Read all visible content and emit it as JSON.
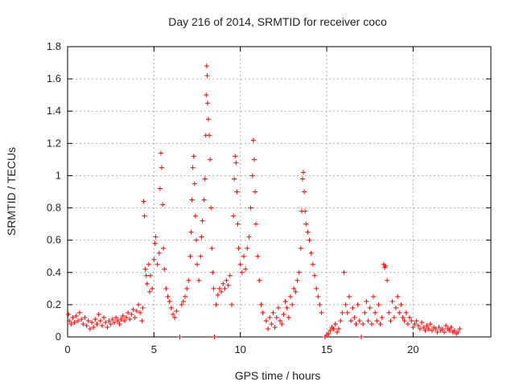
{
  "chart_data": {
    "type": "scatter",
    "title": "Day 216 of 2014, SRMTID for receiver coco",
    "xlabel": "GPS time / hours",
    "ylabel": "SRMTID / TECUs",
    "xlim": [
      0,
      24.5
    ],
    "ylim": [
      0,
      1.8
    ],
    "xticks": [
      0,
      5,
      10,
      15,
      20
    ],
    "xtick_labels": [
      "0",
      "5",
      "10",
      "15",
      "20"
    ],
    "yticks": [
      0,
      0.2,
      0.4,
      0.6,
      0.8,
      1.0,
      1.2,
      1.4,
      1.6,
      1.8
    ],
    "ytick_labels": [
      "0",
      "0.2",
      "0.4",
      "0.6",
      "0.8",
      "1",
      "1.2",
      "1.4",
      "1.6",
      "1.8"
    ],
    "grid": true,
    "marker": "+",
    "series": [
      {
        "name": "SRMTID",
        "color": "#ff0000",
        "points": [
          [
            0.05,
            0.14
          ],
          [
            0.1,
            0.1
          ],
          [
            0.2,
            0.08
          ],
          [
            0.3,
            0.12
          ],
          [
            0.4,
            0.09
          ],
          [
            0.5,
            0.13
          ],
          [
            0.6,
            0.1
          ],
          [
            0.7,
            0.15
          ],
          [
            0.8,
            0.11
          ],
          [
            0.9,
            0.08
          ],
          [
            1.0,
            0.12
          ],
          [
            1.1,
            0.07
          ],
          [
            1.2,
            0.1
          ],
          [
            1.3,
            0.05
          ],
          [
            1.4,
            0.09
          ],
          [
            1.5,
            0.06
          ],
          [
            1.6,
            0.11
          ],
          [
            1.7,
            0.08
          ],
          [
            1.8,
            0.14
          ],
          [
            1.9,
            0.1
          ],
          [
            2.0,
            0.07
          ],
          [
            2.1,
            0.12
          ],
          [
            2.2,
            0.09
          ],
          [
            2.3,
            0.06
          ],
          [
            2.4,
            0.1
          ],
          [
            2.5,
            0.08
          ],
          [
            2.6,
            0.11
          ],
          [
            2.7,
            0.09
          ],
          [
            2.8,
            0.12
          ],
          [
            2.9,
            0.1
          ],
          [
            3.0,
            0.08
          ],
          [
            3.1,
            0.11
          ],
          [
            3.2,
            0.13
          ],
          [
            3.3,
            0.1
          ],
          [
            3.4,
            0.12
          ],
          [
            3.5,
            0.15
          ],
          [
            3.6,
            0.11
          ],
          [
            3.7,
            0.14
          ],
          [
            3.8,
            0.17
          ],
          [
            3.9,
            0.12
          ],
          [
            4.0,
            0.16
          ],
          [
            4.1,
            0.2
          ],
          [
            4.2,
            0.15
          ],
          [
            4.3,
            0.1
          ],
          [
            4.35,
            0.18
          ],
          [
            4.4,
            0.84
          ],
          [
            4.45,
            0.75
          ],
          [
            4.5,
            0.42
          ],
          [
            4.55,
            0.38
          ],
          [
            4.6,
            0.33
          ],
          [
            4.7,
            0.45
          ],
          [
            4.75,
            0.28
          ],
          [
            4.8,
            0.38
          ],
          [
            4.9,
            0.3
          ],
          [
            5.0,
            0.48
          ],
          [
            5.05,
            0.58
          ],
          [
            5.1,
            0.62
          ],
          [
            5.2,
            0.45
          ],
          [
            5.3,
            0.52
          ],
          [
            5.35,
            0.92
          ],
          [
            5.4,
            1.14
          ],
          [
            5.45,
            1.05
          ],
          [
            5.5,
            0.82
          ],
          [
            5.55,
            0.55
          ],
          [
            5.6,
            0.42
          ],
          [
            5.7,
            0.3
          ],
          [
            5.8,
            0.25
          ],
          [
            5.9,
            0.22
          ],
          [
            6.0,
            0.18
          ],
          [
            6.1,
            0.14
          ],
          [
            6.2,
            0.12
          ],
          [
            6.3,
            0.16
          ],
          [
            6.5,
            0.0
          ],
          [
            6.6,
            0.2
          ],
          [
            6.7,
            0.22
          ],
          [
            6.8,
            0.25
          ],
          [
            6.9,
            0.3
          ],
          [
            7.0,
            0.35
          ],
          [
            7.1,
            0.5
          ],
          [
            7.15,
            0.65
          ],
          [
            7.2,
            0.85
          ],
          [
            7.25,
            1.05
          ],
          [
            7.3,
            1.12
          ],
          [
            7.35,
            0.95
          ],
          [
            7.4,
            0.75
          ],
          [
            7.45,
            0.6
          ],
          [
            7.5,
            0.45
          ],
          [
            7.6,
            0.35
          ],
          [
            7.7,
            0.5
          ],
          [
            7.75,
            0.62
          ],
          [
            7.8,
            0.72
          ],
          [
            7.9,
            0.85
          ],
          [
            7.95,
            0.98
          ],
          [
            8.0,
            1.25
          ],
          [
            8.02,
            1.5
          ],
          [
            8.05,
            1.68
          ],
          [
            8.08,
            1.62
          ],
          [
            8.1,
            1.45
          ],
          [
            8.15,
            1.35
          ],
          [
            8.2,
            1.25
          ],
          [
            8.25,
            1.1
          ],
          [
            8.3,
            0.8
          ],
          [
            8.35,
            0.55
          ],
          [
            8.4,
            0.4
          ],
          [
            8.45,
            0.3
          ],
          [
            8.5,
            0.0
          ],
          [
            8.6,
            0.2
          ],
          [
            8.7,
            0.26
          ],
          [
            8.8,
            0.3
          ],
          [
            8.9,
            0.28
          ],
          [
            9.0,
            0.33
          ],
          [
            9.1,
            0.3
          ],
          [
            9.2,
            0.35
          ],
          [
            9.3,
            0.32
          ],
          [
            9.4,
            0.38
          ],
          [
            9.5,
            0.2
          ],
          [
            9.6,
            0.75
          ],
          [
            9.65,
            0.98
          ],
          [
            9.7,
            1.12
          ],
          [
            9.75,
            1.08
          ],
          [
            9.8,
            0.9
          ],
          [
            9.85,
            0.7
          ],
          [
            9.9,
            0.55
          ],
          [
            10.0,
            0.45
          ],
          [
            10.1,
            0.4
          ],
          [
            10.2,
            0.5
          ],
          [
            10.3,
            0.42
          ],
          [
            10.4,
            0.55
          ],
          [
            10.5,
            0.62
          ],
          [
            10.6,
            0.8
          ],
          [
            10.7,
            1.0
          ],
          [
            10.75,
            1.22
          ],
          [
            10.8,
            1.1
          ],
          [
            10.85,
            0.9
          ],
          [
            10.9,
            0.7
          ],
          [
            11.0,
            0.5
          ],
          [
            11.1,
            0.35
          ],
          [
            11.2,
            0.2
          ],
          [
            11.3,
            0.15
          ],
          [
            11.5,
            0.1
          ],
          [
            11.6,
            0.05
          ],
          [
            11.7,
            0.12
          ],
          [
            11.8,
            0.08
          ],
          [
            11.9,
            0.15
          ],
          [
            12.0,
            0.06
          ],
          [
            12.1,
            0.12
          ],
          [
            12.2,
            0.18
          ],
          [
            12.3,
            0.1
          ],
          [
            12.4,
            0.08
          ],
          [
            12.5,
            0.14
          ],
          [
            12.6,
            0.22
          ],
          [
            12.7,
            0.18
          ],
          [
            12.8,
            0.12
          ],
          [
            12.9,
            0.25
          ],
          [
            13.0,
            0.2
          ],
          [
            13.1,
            0.3
          ],
          [
            13.2,
            0.28
          ],
          [
            13.3,
            0.35
          ],
          [
            13.4,
            0.4
          ],
          [
            13.5,
            0.55
          ],
          [
            13.55,
            0.78
          ],
          [
            13.6,
            0.98
          ],
          [
            13.65,
            1.02
          ],
          [
            13.7,
            0.9
          ],
          [
            13.75,
            0.78
          ],
          [
            13.8,
            0.7
          ],
          [
            13.9,
            0.65
          ],
          [
            14.0,
            0.6
          ],
          [
            14.1,
            0.52
          ],
          [
            14.2,
            0.45
          ],
          [
            14.3,
            0.38
          ],
          [
            14.4,
            0.3
          ],
          [
            14.5,
            0.25
          ],
          [
            14.6,
            0.2
          ],
          [
            14.7,
            0.15
          ],
          [
            14.9,
            0.0
          ],
          [
            15.0,
            0.01
          ],
          [
            15.1,
            0.02
          ],
          [
            15.2,
            0.04
          ],
          [
            15.3,
            0.06
          ],
          [
            15.4,
            0.05
          ],
          [
            15.5,
            0.08
          ],
          [
            15.6,
            0.03
          ],
          [
            15.7,
            0.05
          ],
          [
            15.8,
            0.1
          ],
          [
            15.9,
            0.15
          ],
          [
            16.0,
            0.4
          ],
          [
            16.1,
            0.2
          ],
          [
            16.2,
            0.15
          ],
          [
            16.3,
            0.25
          ],
          [
            16.4,
            0.1
          ],
          [
            16.5,
            0.18
          ],
          [
            16.6,
            0.12
          ],
          [
            16.7,
            0.08
          ],
          [
            16.8,
            0.2
          ],
          [
            16.9,
            0.1
          ],
          [
            17.0,
            0.0
          ],
          [
            17.1,
            0.08
          ],
          [
            17.2,
            0.15
          ],
          [
            17.3,
            0.22
          ],
          [
            17.4,
            0.1
          ],
          [
            17.5,
            0.18
          ],
          [
            17.6,
            0.08
          ],
          [
            17.7,
            0.25
          ],
          [
            17.8,
            0.15
          ],
          [
            17.9,
            0.1
          ],
          [
            18.0,
            0.2
          ],
          [
            18.1,
            0.08
          ],
          [
            18.2,
            0.12
          ],
          [
            18.3,
            0.45
          ],
          [
            18.35,
            0.43
          ],
          [
            18.4,
            0.44
          ],
          [
            18.5,
            0.35
          ],
          [
            18.6,
            0.15
          ],
          [
            18.7,
            0.1
          ],
          [
            18.8,
            0.22
          ],
          [
            18.9,
            0.12
          ],
          [
            19.0,
            0.18
          ],
          [
            19.1,
            0.25
          ],
          [
            19.2,
            0.15
          ],
          [
            19.3,
            0.2
          ],
          [
            19.4,
            0.12
          ],
          [
            19.5,
            0.1
          ],
          [
            19.6,
            0.15
          ],
          [
            19.7,
            0.08
          ],
          [
            19.8,
            0.12
          ],
          [
            19.9,
            0.1
          ],
          [
            20.0,
            0.06
          ],
          [
            20.1,
            0.08
          ],
          [
            20.2,
            0.1
          ],
          [
            20.3,
            0.07
          ],
          [
            20.4,
            0.05
          ],
          [
            20.5,
            0.09
          ],
          [
            20.6,
            0.06
          ],
          [
            20.7,
            0.04
          ],
          [
            20.8,
            0.07
          ],
          [
            20.9,
            0.05
          ],
          [
            21.0,
            0.08
          ],
          [
            21.1,
            0.04
          ],
          [
            21.2,
            0.06
          ],
          [
            21.3,
            0.05
          ],
          [
            21.4,
            0.03
          ],
          [
            21.5,
            0.06
          ],
          [
            21.6,
            0.04
          ],
          [
            21.7,
            0.05
          ],
          [
            21.8,
            0.03
          ],
          [
            21.9,
            0.07
          ],
          [
            22.0,
            0.05
          ],
          [
            22.1,
            0.04
          ],
          [
            22.2,
            0.06
          ],
          [
            22.3,
            0.03
          ],
          [
            22.4,
            0.04
          ],
          [
            22.5,
            0.02
          ],
          [
            22.6,
            0.03
          ],
          [
            22.7,
            0.05
          ]
        ]
      }
    ]
  }
}
